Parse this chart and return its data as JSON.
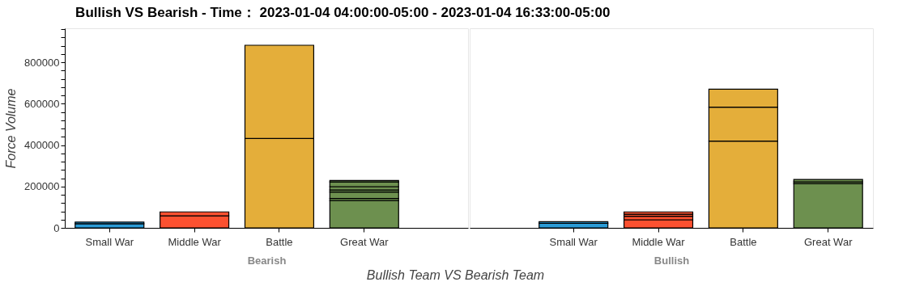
{
  "chart_data": [
    {
      "type": "bar",
      "title": "Bullish VS Bearish - Time： 2023-01-04 04:00:00-05:00 - 2023-01-04 16:33:00-05:00",
      "ylabel": "Force Volume",
      "xlabel": "Bearish",
      "annotations": [
        "Bullish Team VS Bearish Team"
      ],
      "stacked": true,
      "grid": false,
      "categories": [
        "Small War",
        "Middle War",
        "Battle",
        "Great War"
      ],
      "series": [
        {
          "values": [
            20000,
            58000,
            432000,
            131000
          ],
          "colors": [
            "#2b9bd6",
            "#fc5130",
            "#e4ae3a",
            "#6d904f"
          ]
        },
        {
          "values": [
            8000,
            19000,
            450000,
            11000
          ],
          "colors": [
            "#2b9bd6",
            "#fc5130",
            "#e4ae3a",
            "#6d904f"
          ]
        },
        {
          "values": [
            null,
            null,
            null,
            31000
          ],
          "color": "#6d904f"
        },
        {
          "values": [
            null,
            null,
            null,
            10000
          ],
          "color": "#6d904f"
        },
        {
          "values": [
            null,
            null,
            null,
            16000
          ],
          "color": "#6d904f"
        },
        {
          "values": [
            null,
            null,
            null,
            23000
          ],
          "color": "#6d904f"
        },
        {
          "values": [
            null,
            null,
            null,
            7000
          ],
          "color": "#6d904f"
        }
      ],
      "ylim": [
        0,
        964000
      ],
      "yticks": [
        0,
        {
          "value": 40000,
          "label": null
        },
        {
          "value": 80000,
          "label": null
        },
        {
          "value": 120000,
          "label": null
        },
        {
          "value": 160000,
          "label": null
        },
        200000,
        {
          "value": 240000,
          "label": null
        },
        {
          "value": 280000,
          "label": null
        },
        {
          "value": 320000,
          "label": null
        },
        {
          "value": 360000,
          "label": null
        },
        400000,
        {
          "value": 440000,
          "label": null
        },
        {
          "value": 480000,
          "label": null
        },
        {
          "value": 520000,
          "label": null
        },
        {
          "value": 560000,
          "label": null
        },
        600000,
        {
          "value": 640000,
          "label": null
        },
        {
          "value": 680000,
          "label": null
        },
        {
          "value": 720000,
          "label": null
        },
        {
          "value": 760000,
          "label": null
        },
        800000,
        {
          "value": 840000,
          "label": null
        },
        {
          "value": 880000,
          "label": null
        },
        {
          "value": 920000,
          "label": null
        },
        {
          "value": 960000,
          "label": null
        }
      ]
    },
    {
      "type": "bar",
      "xlabel": "Bullish",
      "stacked": true,
      "tick_labels": "x",
      "categories": [
        "Small War",
        "Middle War",
        "Battle",
        "Great War"
      ],
      "series": [
        {
          "values": [
            22000,
            39000,
            419000,
            213000
          ],
          "colors": [
            "#2b9bd6",
            "#fc5130",
            "#e4ae3a",
            "#6d904f"
          ]
        },
        {
          "values": [
            8000,
            17000,
            164000,
            9000
          ],
          "colors": [
            "#2b9bd6",
            "#fc5130",
            "#e4ae3a",
            "#6d904f"
          ]
        },
        {
          "values": [
            null,
            10000,
            87000,
            12000
          ],
          "colors": [
            null,
            "#fc5130",
            "#e4ae3a",
            "#6d904f"
          ]
        },
        {
          "values": [
            null,
            11000,
            null,
            null
          ],
          "color": "#fc5130"
        }
      ],
      "ylim": [
        0,
        964000
      ]
    }
  ]
}
